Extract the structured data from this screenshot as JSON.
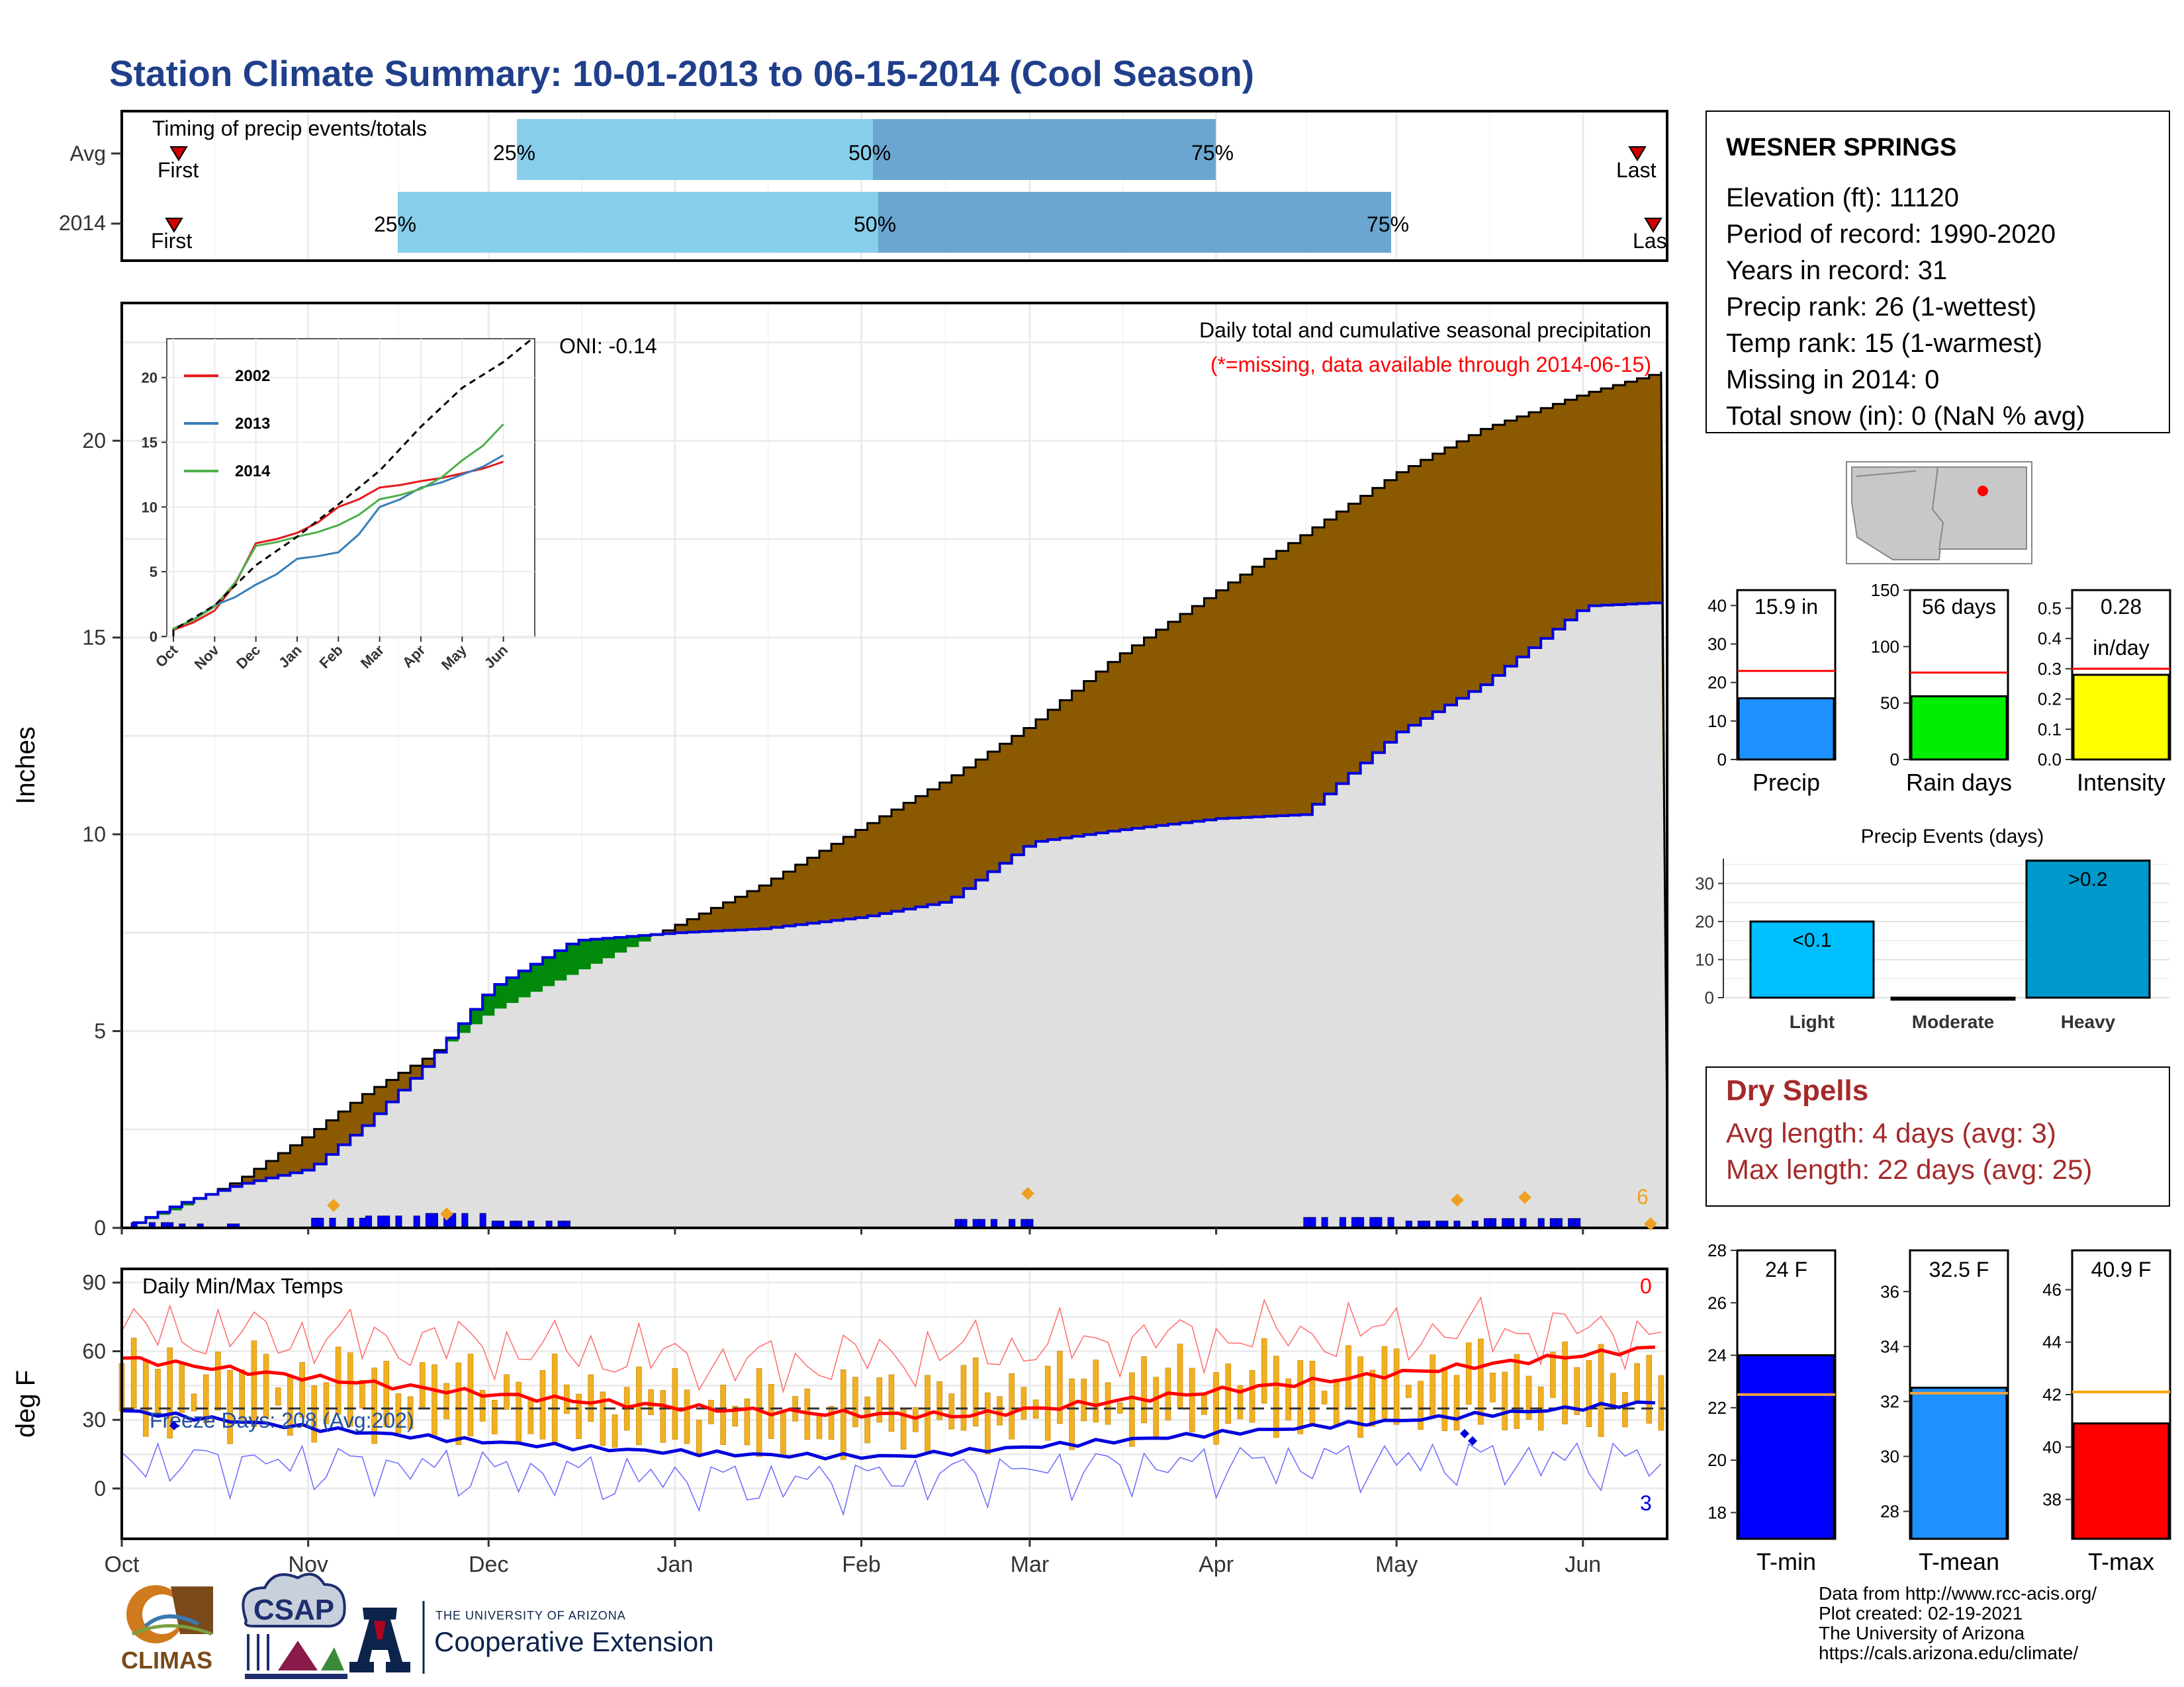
{
  "title": "Station Climate Summary: 10-01-2013 to 06-15-2014 (Cool Season)",
  "colors": {
    "title": "#1f3f8a",
    "brown": "#8b5a00",
    "green": "#00890a",
    "blue_line": "#0000dd",
    "grey_fill": "#dfdfdf",
    "light_blue": "#87ceeb",
    "mid_blue": "#6aa6cf",
    "red": "#ff0000",
    "orange": "#f0b020",
    "dry_red": "#a52a2a"
  },
  "timing": {
    "label": "Timing of precip events/totals",
    "rows": [
      {
        "name": "Avg",
        "first_label": "First",
        "last_label": "Last",
        "p25_label": "25%",
        "p50_label": "50%",
        "p75_label": "75%"
      },
      {
        "name": "2014",
        "first_label": "First",
        "last_label": "Last",
        "p25_label": "25%",
        "p50_label": "50%",
        "p75_label": "75%"
      }
    ]
  },
  "precip_chart": {
    "title": "Daily total and cumulative seasonal precipitation",
    "subtitle": "(*=missing, data available through 2014-06-15)",
    "ylabel": "Inches",
    "oni": "ONI: -0.14",
    "corner_count": "6",
    "yticks": [
      "0",
      "5",
      "10",
      "15",
      "20"
    ]
  },
  "inset": {
    "legend": [
      "2002",
      "2013",
      "2014"
    ],
    "yticks": [
      "0",
      "5",
      "10",
      "15",
      "20"
    ],
    "xticks": [
      "Oct",
      "Nov",
      "Dec",
      "Jan",
      "Feb",
      "Mar",
      "Apr",
      "May",
      "Jun"
    ]
  },
  "temp_chart": {
    "title": "Daily Min/Max Temps",
    "ylabel": "deg F",
    "freeze": "Freeze Days: 208 (Avg:202)",
    "hot_count": "0",
    "cold_count": "3",
    "yticks": [
      "0",
      "30",
      "60",
      "90"
    ]
  },
  "months": [
    "Oct",
    "Nov",
    "Dec",
    "Jan",
    "Feb",
    "Mar",
    "Apr",
    "May",
    "Jun"
  ],
  "station": {
    "name": "WESNER SPRINGS",
    "lines": [
      "Elevation (ft): 11120",
      "Period of record: 1990-2020",
      "Years in record: 31",
      "Precip rank: 26 (1-wettest)",
      "Temp rank: 15 (1-warmest)",
      "Missing in 2014: 0",
      "Total snow (in): 0 (NaN % avg)"
    ]
  },
  "mini_bars": [
    {
      "label": "Precip",
      "value_text": "15.9 in",
      "yticks": [
        "0",
        "10",
        "20",
        "30",
        "40"
      ]
    },
    {
      "label": "Rain days",
      "value_text": "56 days",
      "yticks": [
        "0",
        "50",
        "100",
        "150"
      ]
    },
    {
      "label": "Intensity",
      "value_text": "0.28",
      "value_text2": "in/day",
      "yticks": [
        "0.0",
        "0.1",
        "0.2",
        "0.3",
        "0.4",
        "0.5"
      ]
    }
  ],
  "precip_events": {
    "title": "Precip Events (days)",
    "yticks": [
      "0",
      "10",
      "20",
      "30"
    ],
    "bars": [
      {
        "label": "Light",
        "bar_label": "<0.1"
      },
      {
        "label": "Moderate",
        "bar_label": ""
      },
      {
        "label": "Heavy",
        "bar_label": ">0.2"
      }
    ]
  },
  "dry_spells": {
    "title": "Dry Spells",
    "avg": "Avg length: 4 days (avg: 3)",
    "max": "Max length: 22 days (avg: 25)"
  },
  "temp_bars": [
    {
      "label": "T-min",
      "value_text": "24 F",
      "yticks": [
        "18",
        "20",
        "22",
        "24",
        "26",
        "28"
      ]
    },
    {
      "label": "T-mean",
      "value_text": "32.5 F",
      "yticks": [
        "28",
        "30",
        "32",
        "34",
        "36"
      ]
    },
    {
      "label": "T-max",
      "value_text": "40.9 F",
      "yticks": [
        "38",
        "40",
        "42",
        "44",
        "46"
      ]
    }
  ],
  "credits": [
    "Data from http://www.rcc-acis.org/",
    "Plot created: 02-19-2021",
    "The University of Arizona",
    "https://cals.arizona.edu/climate/"
  ],
  "logos": {
    "climas": "CLIMAS",
    "csap": "CSAP",
    "ua_small": "THE UNIVERSITY OF ARIZONA",
    "ua_big": "Cooperative Extension"
  },
  "chart_data": [
    {
      "type": "area",
      "title": "Daily total and cumulative seasonal precipitation",
      "ylabel": "Inches",
      "ylim": [
        0,
        23.5
      ],
      "x_range": [
        "2013-10-01",
        "2014-06-15"
      ],
      "series": [
        {
          "name": "2014",
          "x": [
            "2013-10-01",
            "2013-10-10",
            "2013-10-20",
            "2013-11-01",
            "2013-11-10",
            "2013-11-20",
            "2013-12-01",
            "2013-12-15",
            "2014-01-01",
            "2014-01-15",
            "2014-02-01",
            "2014-02-15",
            "2014-03-01",
            "2014-03-15",
            "2014-04-01",
            "2014-04-15",
            "2014-05-01",
            "2014-05-15",
            "2014-06-01",
            "2014-06-15"
          ],
          "values": [
            0,
            0.6,
            1.1,
            1.5,
            2.6,
            4.1,
            6.1,
            7.3,
            7.5,
            7.6,
            7.9,
            8.3,
            9.8,
            10.1,
            10.4,
            10.5,
            12.6,
            13.8,
            15.8,
            15.9
          ]
        },
        {
          "name": "Avg",
          "x": [
            "2013-10-01",
            "2013-10-10",
            "2013-10-20",
            "2013-11-01",
            "2013-11-10",
            "2013-11-20",
            "2013-12-01",
            "2013-12-15",
            "2014-01-01",
            "2014-01-15",
            "2014-02-01",
            "2014-02-15",
            "2014-03-01",
            "2014-03-15",
            "2014-04-01",
            "2014-04-15",
            "2014-05-01",
            "2014-05-15",
            "2014-06-01",
            "2014-06-15"
          ],
          "values": [
            0,
            0.5,
            1.2,
            2.4,
            3.4,
            4.3,
            5.5,
            6.5,
            7.7,
            8.7,
            10.2,
            11.4,
            12.8,
            14.5,
            16.2,
            17.6,
            19.2,
            20.3,
            21.2,
            21.8
          ]
        }
      ]
    },
    {
      "type": "line",
      "title": "",
      "ylim": [
        0,
        23
      ],
      "categories": [
        "Oct",
        "Nov",
        "Dec",
        "Jan",
        "Feb",
        "Mar",
        "Apr",
        "May",
        "Jun"
      ],
      "series": [
        {
          "name": "2002",
          "values": [
            0.5,
            2.0,
            7.2,
            8.0,
            10.0,
            11.5,
            12.0,
            12.6,
            13.5
          ]
        },
        {
          "name": "2013",
          "values": [
            0.6,
            2.4,
            4.0,
            6.0,
            6.5,
            10.0,
            11.5,
            12.5,
            14.0
          ]
        },
        {
          "name": "2014",
          "values": [
            0.6,
            2.3,
            7.0,
            7.7,
            8.6,
            10.6,
            11.4,
            13.6,
            16.4
          ]
        }
      ]
    },
    {
      "type": "bar",
      "title": "",
      "categories": [
        "Precip",
        "Rain days",
        "Intensity"
      ],
      "series": [
        {
          "name": "2014",
          "values": [
            15.9,
            56,
            0.28
          ]
        },
        {
          "name": "Avg",
          "values": [
            23.0,
            77,
            0.3
          ]
        }
      ]
    },
    {
      "type": "bar",
      "title": "Precip Events (days)",
      "categories": [
        "Light",
        "Moderate",
        "Heavy"
      ],
      "values": [
        20,
        0,
        36
      ],
      "ylim": [
        0,
        36
      ]
    },
    {
      "type": "bar",
      "title": "",
      "categories": [
        "T-min",
        "T-mean",
        "T-max"
      ],
      "series": [
        {
          "name": "2014",
          "values": [
            24.0,
            32.5,
            40.9
          ]
        },
        {
          "name": "Avg",
          "values": [
            22.5,
            32.3,
            42.1
          ]
        }
      ]
    }
  ]
}
